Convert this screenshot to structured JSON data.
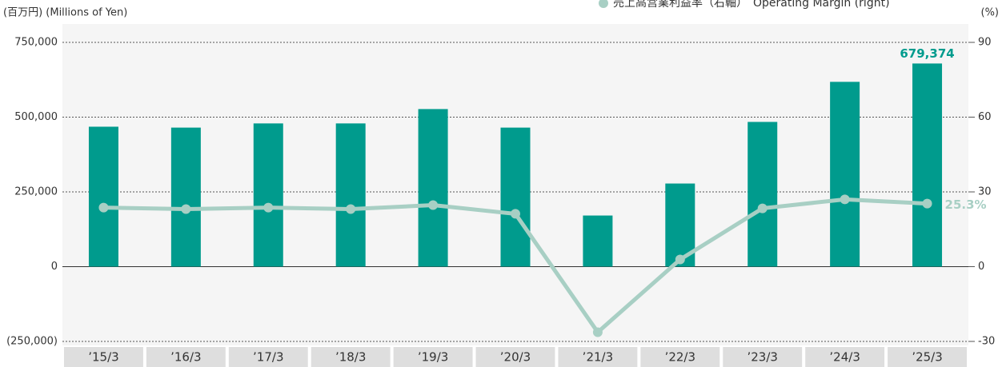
{
  "chart_data": {
    "type": "bar_line",
    "unit_left": "(百万円) (Millions of Yen)",
    "unit_right": "(%)",
    "categories": [
      "’15/3",
      "’16/3",
      "’17/3",
      "’18/3",
      "’19/3",
      "’20/3",
      "’21/3",
      "’22/3",
      "’23/3",
      "’24/3",
      "’25/3"
    ],
    "series": [
      {
        "color": "#009b8d",
        "values": [
          468000,
          465000,
          479000,
          479000,
          527000,
          465000,
          171000,
          278000,
          484000,
          618000,
          679374
        ],
        "value_labels": [
          null,
          null,
          null,
          null,
          null,
          null,
          null,
          null,
          null,
          null,
          "679,374"
        ]
      },
      {
        "name": "売上高営業利益率（右軸）　Operating Margin (right)",
        "color": "#a8cfc4",
        "axis": "y2",
        "values": [
          23.7,
          23.1,
          23.7,
          23.1,
          24.7,
          21.2,
          -26.3,
          2.9,
          23.4,
          27.0,
          25.3
        ],
        "value_labels": [
          null,
          null,
          null,
          null,
          null,
          null,
          null,
          null,
          null,
          null,
          "25.3%"
        ]
      }
    ],
    "ylim": [
      -250000,
      750000
    ],
    "yticks": [
      {
        "value": 750000,
        "label": "750,000"
      },
      {
        "value": 500000,
        "label": "500,000"
      },
      {
        "value": 250000,
        "label": "250,000"
      },
      0,
      {
        "value": -250000,
        "label": "(250,000)"
      }
    ],
    "y2lim": [
      -30,
      90
    ],
    "y2ticks": [
      90,
      60,
      30,
      0,
      -30
    ],
    "grid": true
  }
}
